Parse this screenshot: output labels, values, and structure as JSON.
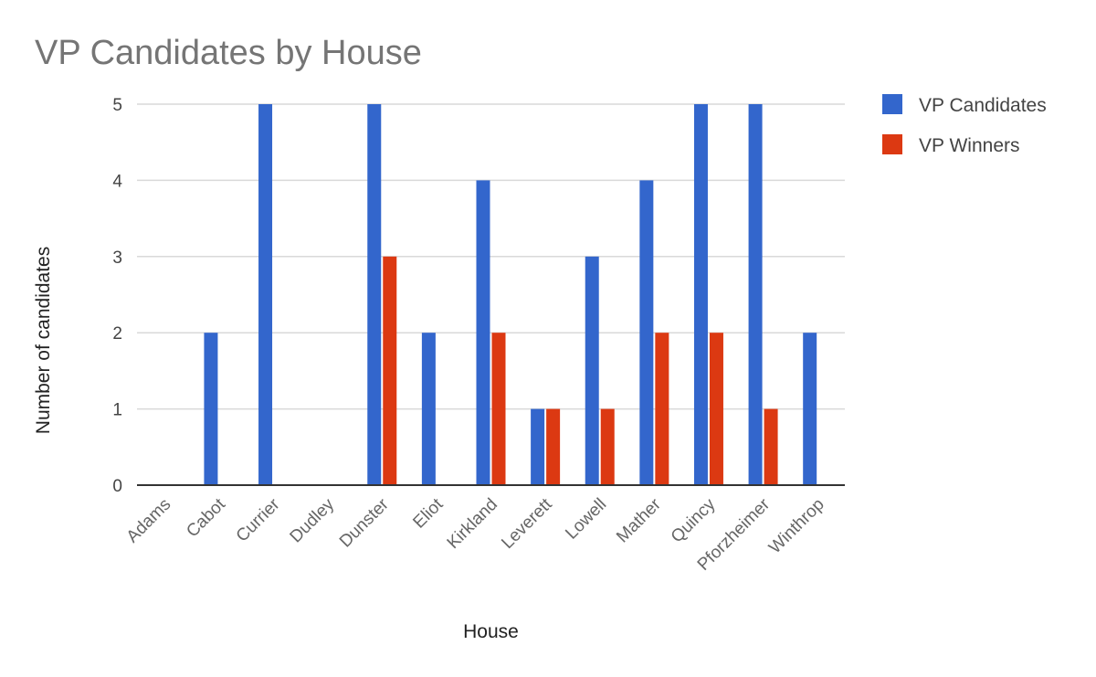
{
  "chart_data": {
    "type": "bar",
    "title": "VP Candidates by House",
    "xlabel": "House",
    "ylabel": "Number of candidates",
    "categories": [
      "Adams",
      "Cabot",
      "Currier",
      "Dudley",
      "Dunster",
      "Eliot",
      "Kirkland",
      "Leverett",
      "Lowell",
      "Mather",
      "Quincy",
      "Pforzheimer",
      "Winthrop"
    ],
    "series": [
      {
        "name": "VP Candidates",
        "color": "#3366cc",
        "values": [
          0,
          2,
          5,
          0,
          5,
          2,
          4,
          1,
          3,
          4,
          5,
          5,
          2
        ]
      },
      {
        "name": "VP Winners",
        "color": "#dc3912",
        "values": [
          0,
          0,
          0,
          0,
          3,
          0,
          2,
          1,
          1,
          2,
          2,
          1,
          0
        ]
      }
    ],
    "ylim": [
      0,
      5
    ],
    "yticks": [
      0,
      1,
      2,
      3,
      4,
      5
    ],
    "grid": true,
    "legend_position": "right"
  }
}
